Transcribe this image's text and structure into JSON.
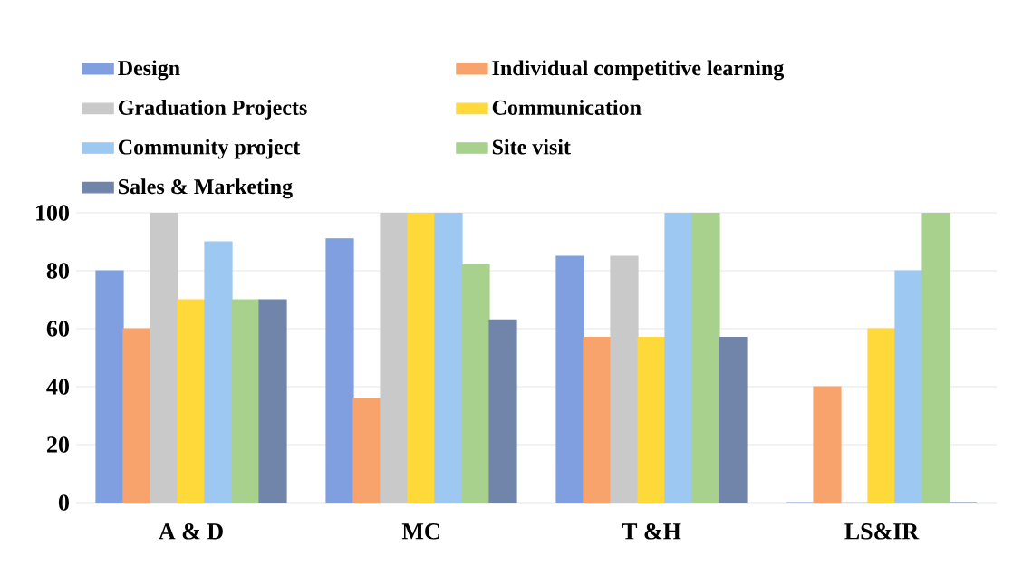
{
  "chart_data": {
    "type": "bar",
    "categories": [
      "A & D",
      "MC",
      "T &H",
      "LS&IR"
    ],
    "series": [
      {
        "name": "Design",
        "color": "#7f9fe0",
        "values": [
          80,
          91,
          85,
          0
        ]
      },
      {
        "name": "Individual competitive learning",
        "color": "#f8a36c",
        "values": [
          60,
          36,
          57,
          40
        ]
      },
      {
        "name": "Graduation Projects",
        "color": "#c9c9c9",
        "values": [
          100,
          100,
          85,
          0
        ]
      },
      {
        "name": "Communication",
        "color": "#ffd83a",
        "values": [
          70,
          100,
          57,
          60
        ]
      },
      {
        "name": "Community project",
        "color": "#9dc8f2",
        "values": [
          90,
          100,
          100,
          80
        ]
      },
      {
        "name": "Site visit",
        "color": "#a9d18e",
        "values": [
          70,
          82,
          100,
          100
        ]
      },
      {
        "name": "Sales & Marketing",
        "color": "#7185ab",
        "values": [
          70,
          63,
          57,
          0
        ]
      }
    ],
    "ylim": [
      0,
      100
    ],
    "yticks": [
      0,
      20,
      40,
      60,
      80,
      100
    ],
    "grid": "y",
    "legend": "top"
  }
}
